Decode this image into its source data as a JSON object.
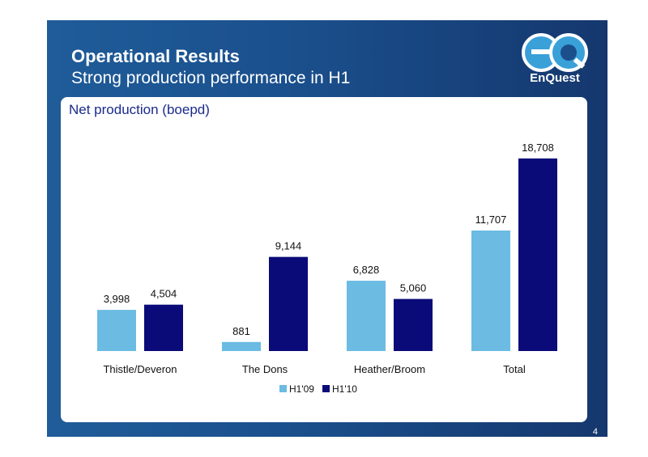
{
  "slide": {
    "title": "Operational Results",
    "subtitle": "Strong production performance in H1",
    "page_number": "4",
    "logo": {
      "mark": "eQ",
      "text": "EnQuest",
      "colors": {
        "mark": "#3aa0d8",
        "outline": "#ffffff"
      }
    }
  },
  "chart_data": {
    "type": "bar",
    "title": "Net production (boepd)",
    "categories": [
      "Thistle/Deveron",
      "The Dons",
      "Heather/Broom",
      "Total"
    ],
    "series": [
      {
        "name": "H1'09",
        "values": [
          3998,
          881,
          6828,
          11707
        ],
        "labels": [
          "3,998",
          "881",
          "6,828",
          "11,707"
        ],
        "color": "#6bbbe3"
      },
      {
        "name": "H1'10",
        "values": [
          4504,
          9144,
          5060,
          18708
        ],
        "labels": [
          "4,504",
          "9,144",
          "5,060",
          "18,708"
        ],
        "color": "#0a0a78"
      }
    ],
    "ylim": [
      0,
      22000
    ],
    "grid": false,
    "legend_position": "bottom"
  }
}
